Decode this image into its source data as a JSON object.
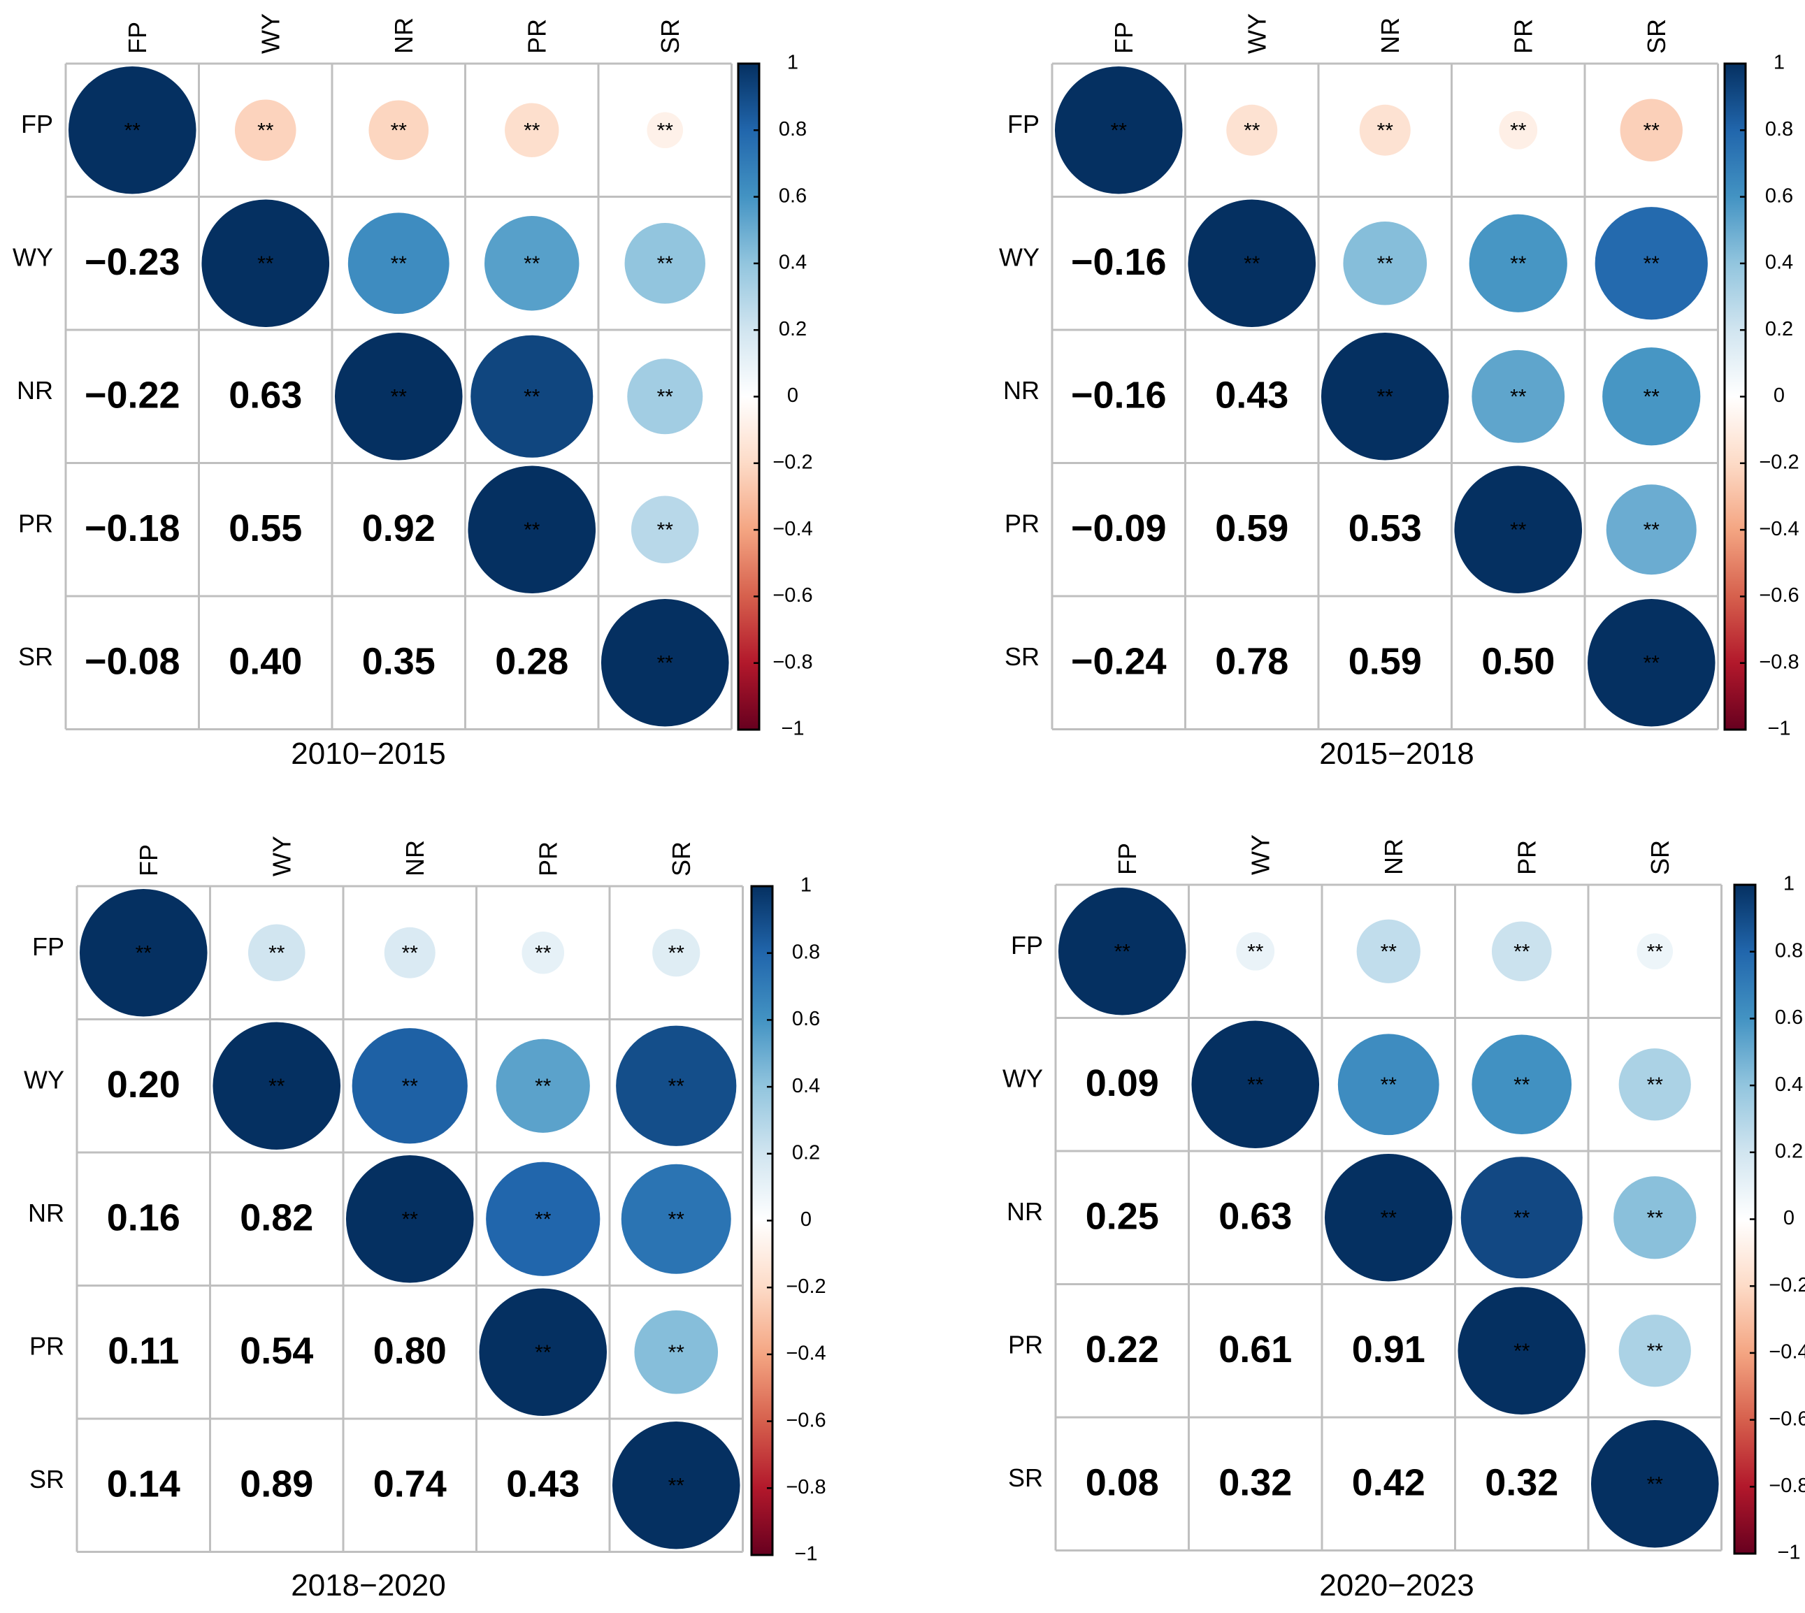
{
  "figure": {
    "significance_marker": "**",
    "colorbar_ticks": [
      "1",
      "0.8",
      "0.6",
      "0.4",
      "0.2",
      "0",
      "−0.2",
      "−0.4",
      "−0.6",
      "−0.8",
      "−1"
    ],
    "colorbar_tick_values": [
      1,
      0.8,
      0.6,
      0.4,
      0.2,
      0,
      -0.2,
      -0.4,
      -0.6,
      -0.8,
      -1
    ],
    "colors": {
      "scale": [
        "#67001f",
        "#b2182b",
        "#d6604d",
        "#f4a582",
        "#fddbc7",
        "#ffffff",
        "#d1e5f0",
        "#92c5de",
        "#4393c3",
        "#2166ac",
        "#053061"
      ],
      "grid": "#bfbfbf"
    }
  },
  "chart_data": [
    {
      "type": "heatmap",
      "title": "2010−2015",
      "variables": [
        "FP",
        "WY",
        "NR",
        "PR",
        "SR"
      ],
      "lower_labels": [
        [
          null,
          null,
          null,
          null,
          null
        ],
        [
          "−0.23",
          null,
          null,
          null,
          null
        ],
        [
          "−0.22",
          "0.63",
          null,
          null,
          null
        ],
        [
          "−0.18",
          "0.55",
          "0.92",
          null,
          null
        ],
        [
          "−0.08",
          "0.40",
          "0.35",
          "0.28",
          null
        ]
      ],
      "values": [
        [
          1,
          -0.23,
          -0.22,
          -0.18,
          -0.08
        ],
        [
          -0.23,
          1,
          0.63,
          0.55,
          0.4
        ],
        [
          -0.22,
          0.63,
          1,
          0.92,
          0.35
        ],
        [
          -0.18,
          0.55,
          0.92,
          1,
          0.28
        ],
        [
          -0.08,
          0.4,
          0.35,
          0.28,
          1
        ]
      ],
      "colorbar_range": [
        -1,
        1
      ]
    },
    {
      "type": "heatmap",
      "title": "2015−2018",
      "variables": [
        "FP",
        "WY",
        "NR",
        "PR",
        "SR"
      ],
      "lower_labels": [
        [
          null,
          null,
          null,
          null,
          null
        ],
        [
          "−0.16",
          null,
          null,
          null,
          null
        ],
        [
          "−0.16",
          "0.43",
          null,
          null,
          null
        ],
        [
          "−0.09",
          "0.59",
          "0.53",
          null,
          null
        ],
        [
          "−0.24",
          "0.78",
          "0.59",
          "0.50",
          null
        ]
      ],
      "values": [
        [
          1,
          -0.16,
          -0.16,
          -0.09,
          -0.24
        ],
        [
          -0.16,
          1,
          0.43,
          0.59,
          0.78
        ],
        [
          -0.16,
          0.43,
          1,
          0.53,
          0.59
        ],
        [
          -0.09,
          0.59,
          0.53,
          1,
          0.5
        ],
        [
          -0.24,
          0.78,
          0.59,
          0.5,
          1
        ]
      ],
      "colorbar_range": [
        -1,
        1
      ]
    },
    {
      "type": "heatmap",
      "title": "2018−2020",
      "variables": [
        "FP",
        "WY",
        "NR",
        "PR",
        "SR"
      ],
      "lower_labels": [
        [
          null,
          null,
          null,
          null,
          null
        ],
        [
          "0.20",
          null,
          null,
          null,
          null
        ],
        [
          "0.16",
          "0.82",
          null,
          null,
          null
        ],
        [
          "0.11",
          "0.54",
          "0.80",
          null,
          null
        ],
        [
          "0.14",
          "0.89",
          "0.74",
          "0.43",
          null
        ]
      ],
      "values": [
        [
          1,
          0.2,
          0.16,
          0.11,
          0.14
        ],
        [
          0.2,
          1,
          0.82,
          0.54,
          0.89
        ],
        [
          0.16,
          0.82,
          1,
          0.8,
          0.74
        ],
        [
          0.11,
          0.54,
          0.8,
          1,
          0.43
        ],
        [
          0.14,
          0.89,
          0.74,
          0.43,
          1
        ]
      ],
      "colorbar_range": [
        -1,
        1
      ]
    },
    {
      "type": "heatmap",
      "title": "2020−2023",
      "variables": [
        "FP",
        "WY",
        "NR",
        "PR",
        "SR"
      ],
      "lower_labels": [
        [
          null,
          null,
          null,
          null,
          null
        ],
        [
          "0.09",
          null,
          null,
          null,
          null
        ],
        [
          "0.25",
          "0.63",
          null,
          null,
          null
        ],
        [
          "0.22",
          "0.61",
          "0.91",
          null,
          null
        ],
        [
          "0.08",
          "0.32",
          "0.42",
          "0.32",
          null
        ]
      ],
      "values": [
        [
          1,
          0.09,
          0.25,
          0.22,
          0.08
        ],
        [
          0.09,
          1,
          0.63,
          0.61,
          0.32
        ],
        [
          0.25,
          0.63,
          1,
          0.91,
          0.42
        ],
        [
          0.22,
          0.61,
          0.91,
          1,
          0.32
        ],
        [
          0.08,
          0.32,
          0.42,
          0.32,
          1
        ]
      ],
      "colorbar_range": [
        -1,
        1
      ]
    }
  ]
}
